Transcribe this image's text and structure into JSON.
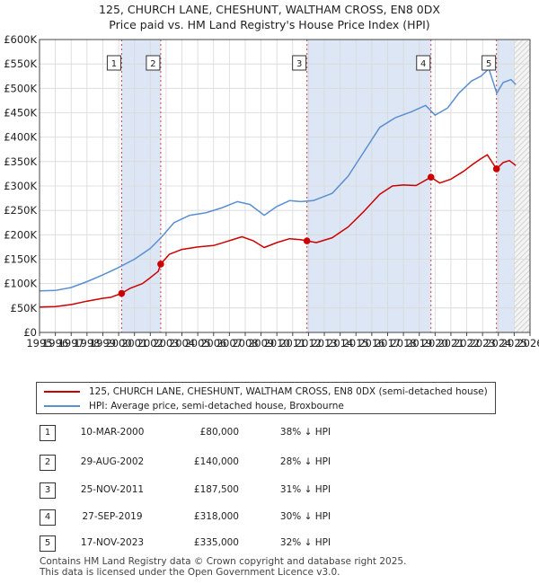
{
  "title": "125, CHURCH LANE, CHESHUNT, WALTHAM CROSS, EN8 0DX",
  "subtitle": "Price paid vs. HM Land Registry's House Price Index (HPI)",
  "colors": {
    "property": "#cc0000",
    "hpi": "#5a8fd0",
    "shade": "#dde6f5",
    "grid": "#d8d8d8"
  },
  "chart_data": {
    "type": "line",
    "xlim": [
      1995,
      2026
    ],
    "ylim": [
      0,
      600000
    ],
    "y_ticks": [
      0,
      50000,
      100000,
      150000,
      200000,
      250000,
      300000,
      350000,
      400000,
      450000,
      500000,
      550000,
      600000
    ],
    "y_tick_labels": [
      "£0",
      "£50K",
      "£100K",
      "£150K",
      "£200K",
      "£250K",
      "£300K",
      "£350K",
      "£400K",
      "£450K",
      "£500K",
      "£550K",
      "£600K"
    ],
    "x_ticks": [
      1995,
      1996,
      1997,
      1998,
      1999,
      2000,
      2001,
      2002,
      2003,
      2004,
      2005,
      2006,
      2007,
      2008,
      2009,
      2010,
      2011,
      2012,
      2013,
      2014,
      2015,
      2016,
      2017,
      2018,
      2019,
      2020,
      2021,
      2022,
      2023,
      2024,
      2025,
      2026
    ],
    "x_tick_labels": [
      "1995",
      "1996",
      "1997",
      "1998",
      "1999",
      "2000",
      "2001",
      "2002",
      "2003",
      "2004",
      "2005",
      "2006",
      "2007",
      "2008",
      "2009",
      "2010",
      "2011",
      "2012",
      "2013",
      "2014",
      "2015",
      "2016",
      "2017",
      "2018",
      "2019",
      "2020",
      "2021",
      "2022",
      "2023",
      "2024",
      "2025",
      "2026"
    ],
    "forecast_from": 2025.0,
    "series": [
      {
        "name": "125, CHURCH LANE, CHESHUNT, WALTHAM CROSS, EN8 0DX (semi-detached house)",
        "color": "#cc0000",
        "x": [
          1995.0,
          1996.0,
          1997.0,
          1998.0,
          1999.0,
          1999.5,
          2000.19,
          2000.7,
          2001.5,
          2002.0,
          2002.5,
          2002.66,
          2003.2,
          2004.0,
          2005.0,
          2006.0,
          2007.0,
          2007.8,
          2008.5,
          2009.2,
          2010.0,
          2010.8,
          2011.5,
          2011.9,
          2012.5,
          2013.5,
          2014.5,
          2015.5,
          2016.5,
          2017.3,
          2018.0,
          2018.8,
          2019.74,
          2020.3,
          2021.0,
          2021.8,
          2022.4,
          2022.9,
          2023.3,
          2023.88,
          2024.3,
          2024.7,
          2025.1
        ],
        "y": [
          52000,
          53000,
          57000,
          64000,
          70000,
          72000,
          80000,
          90000,
          100000,
          112000,
          125000,
          140000,
          160000,
          170000,
          175000,
          178000,
          188000,
          196000,
          188000,
          174000,
          184000,
          192000,
          190000,
          187500,
          184000,
          194000,
          216000,
          248000,
          283000,
          300000,
          302000,
          301000,
          318000,
          306000,
          314000,
          330000,
          345000,
          356000,
          364000,
          335000,
          348000,
          352000,
          342000
        ]
      },
      {
        "name": "HPI: Average price, semi-detached house, Broxbourne",
        "color": "#5a8fd0",
        "x": [
          1995.0,
          1996.0,
          1997.0,
          1998.0,
          1999.0,
          2000.0,
          2001.0,
          2002.0,
          2002.7,
          2003.5,
          2004.5,
          2005.5,
          2006.5,
          2007.5,
          2008.3,
          2009.2,
          2010.0,
          2010.8,
          2011.5,
          2012.3,
          2013.5,
          2014.5,
          2015.5,
          2016.5,
          2017.5,
          2018.5,
          2019.4,
          2020.0,
          2020.8,
          2021.5,
          2022.3,
          2022.9,
          2023.4,
          2023.9,
          2024.3,
          2024.8,
          2025.1
        ],
        "y": [
          85000,
          86000,
          92000,
          104000,
          118000,
          133000,
          150000,
          172000,
          195000,
          225000,
          240000,
          245000,
          255000,
          268000,
          262000,
          240000,
          258000,
          270000,
          268000,
          270000,
          285000,
          320000,
          370000,
          420000,
          440000,
          452000,
          465000,
          445000,
          460000,
          490000,
          515000,
          525000,
          540000,
          490000,
          512000,
          518000,
          508000
        ]
      }
    ],
    "transactions": [
      {
        "label": "1",
        "x": 2000.19,
        "price": 80000,
        "date": "10-MAR-2000",
        "price_text": "£80,000",
        "hpi_text": "38% ↓ HPI"
      },
      {
        "label": "2",
        "x": 2002.66,
        "price": 140000,
        "date": "29-AUG-2002",
        "price_text": "£140,000",
        "hpi_text": "28% ↓ HPI"
      },
      {
        "label": "3",
        "x": 2011.9,
        "price": 187500,
        "date": "25-NOV-2011",
        "price_text": "£187,500",
        "hpi_text": "31% ↓ HPI"
      },
      {
        "label": "4",
        "x": 2019.74,
        "price": 318000,
        "date": "27-SEP-2019",
        "price_text": "£318,000",
        "hpi_text": "30% ↓ HPI"
      },
      {
        "label": "5",
        "x": 2023.88,
        "price": 335000,
        "date": "17-NOV-2023",
        "price_text": "£335,000",
        "hpi_text": "32% ↓ HPI"
      }
    ]
  },
  "legend": {
    "property_label": "125, CHURCH LANE, CHESHUNT, WALTHAM CROSS, EN8 0DX (semi-detached house)",
    "hpi_label": "HPI: Average price, semi-detached house, Broxbourne"
  },
  "footer": {
    "line1": "Contains HM Land Registry data © Crown copyright and database right 2025.",
    "line2": "This data is licensed under the Open Government Licence v3.0."
  }
}
